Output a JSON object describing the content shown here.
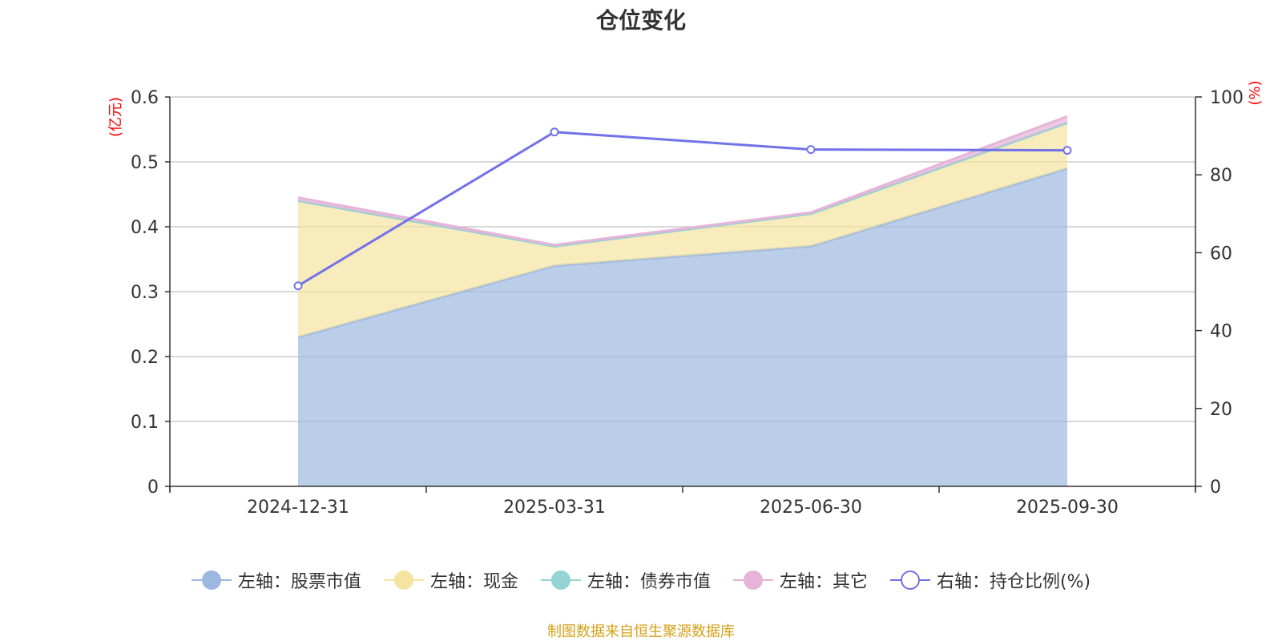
{
  "chart_data": {
    "type": "area",
    "title": "仓位变化",
    "categories": [
      "2024-12-31",
      "2025-03-31",
      "2025-06-30",
      "2025-09-30"
    ],
    "left_axis": {
      "label": "(亿元)",
      "ylim": [
        0,
        0.6
      ],
      "ticks": [
        "0",
        "0.1",
        "0.2",
        "0.3",
        "0.4",
        "0.5",
        "0.6"
      ]
    },
    "right_axis": {
      "label": "(%)",
      "ylim": [
        0,
        100
      ],
      "ticks": [
        "0",
        "20",
        "40",
        "60",
        "80",
        "100"
      ]
    },
    "series": [
      {
        "name": "左轴：股票市值",
        "type": "area",
        "axis": "left",
        "values": [
          0.23,
          0.34,
          0.37,
          0.49
        ],
        "color": "#9db8e0"
      },
      {
        "name": "左轴：现金",
        "type": "area",
        "axis": "left",
        "values": [
          0.21,
          0.03,
          0.05,
          0.07
        ],
        "color": "#f5e4a0"
      },
      {
        "name": "左轴：债券市值",
        "type": "area",
        "axis": "left",
        "values": [
          0,
          0,
          0,
          0
        ],
        "color": "#93d3d4"
      },
      {
        "name": "左轴：其它",
        "type": "area",
        "axis": "left",
        "values": [
          0.005,
          0.002,
          0.002,
          0.01
        ],
        "color": "#e6b4d8"
      },
      {
        "name": "右轴：持仓比例(%)",
        "type": "line",
        "axis": "right",
        "values": [
          51.5,
          91,
          86.5,
          86.3
        ],
        "color": "#7272e8"
      }
    ],
    "grid": true,
    "legend_position": "bottom"
  },
  "source_note": "制图数据来自恒生聚源数据库"
}
